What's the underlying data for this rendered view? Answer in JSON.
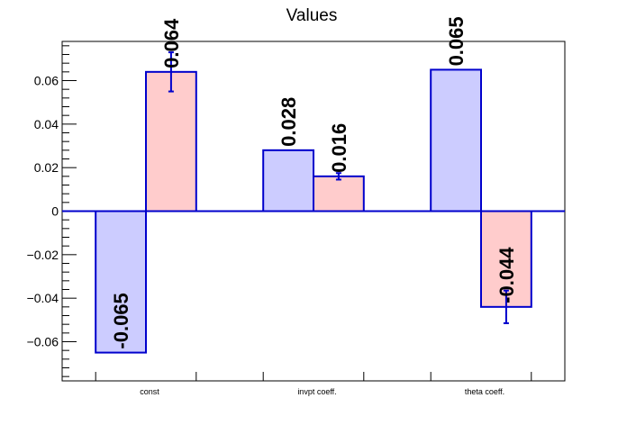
{
  "chart_data": {
    "type": "bar",
    "title": "Values",
    "xlabel": "",
    "ylabel": "",
    "categories": [
      "const",
      "invpt coeff.",
      "theta coeff."
    ],
    "ylim": [
      -0.078,
      0.078
    ],
    "yticks": [
      -0.06,
      -0.04,
      -0.02,
      0,
      0.02,
      0.04,
      0.06
    ],
    "ytick_labels": [
      "−0.06",
      "−0.04",
      "−0.02",
      "0",
      "0.02",
      "0.04",
      "0.06"
    ],
    "grid": false,
    "legend": "none",
    "series": [
      {
        "values": [
          -0.065,
          0.028,
          0.065
        ],
        "labels": [
          "-0.065",
          "0.028",
          "0.065"
        ],
        "errors": [
          null,
          null,
          null
        ],
        "fill": "#ccccff",
        "stroke": "#0000cc"
      },
      {
        "values": [
          0.064,
          0.016,
          -0.044
        ],
        "labels": [
          "0.064",
          "0.016",
          "-0.044"
        ],
        "errors": [
          0.009,
          0.0015,
          0.0075
        ],
        "fill": "#ffcccc",
        "stroke": "#0000cc"
      }
    ],
    "colors": {
      "axis": "#000000",
      "zero_line": "#0000cc",
      "error_bar": "#0000cc"
    }
  }
}
